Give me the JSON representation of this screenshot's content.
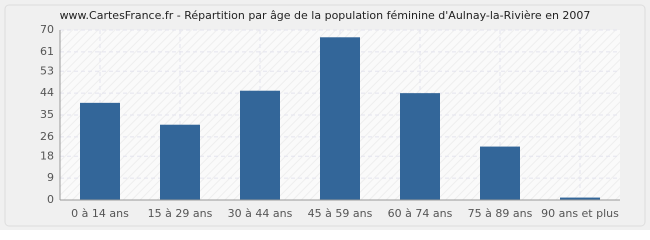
{
  "chart_data": {
    "type": "bar",
    "title": "www.CartesFrance.fr - Répartition par âge de la population féminine d'Aulnay-la-Rivière en 2007",
    "categories": [
      "0 à 14 ans",
      "15 à 29 ans",
      "30 à 44 ans",
      "45 à 59 ans",
      "60 à 74 ans",
      "75 à 89 ans",
      "90 ans et plus"
    ],
    "values": [
      40,
      31,
      45,
      67,
      44,
      22,
      1
    ],
    "color": "#336699",
    "ylim": [
      0,
      70
    ],
    "yticks": [
      0,
      9,
      18,
      26,
      35,
      44,
      53,
      61,
      70
    ],
    "grid": true
  }
}
